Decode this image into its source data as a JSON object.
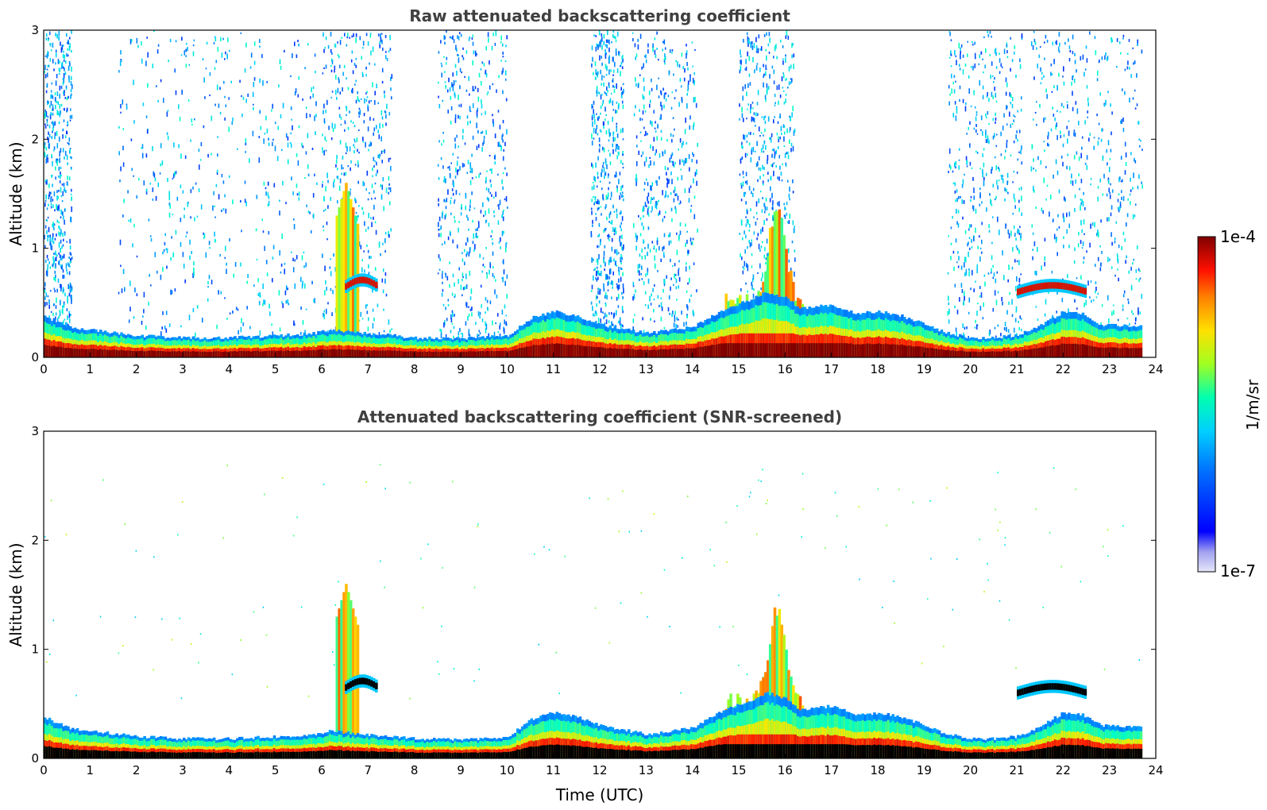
{
  "chart_data": [
    {
      "type": "heatmap",
      "title": "Raw attenuated backscattering coefficient",
      "xlabel": "",
      "ylabel": "Altitude (km)",
      "xlim": [
        0,
        24
      ],
      "ylim": [
        0,
        3
      ],
      "xticks": [
        0,
        1,
        2,
        3,
        4,
        5,
        6,
        7,
        8,
        9,
        10,
        11,
        12,
        13,
        14,
        15,
        16,
        17,
        18,
        19,
        20,
        21,
        22,
        23,
        24
      ],
      "yticks": [
        0,
        1,
        2,
        3
      ],
      "screened": false,
      "boundary_layer_top_km": [
        [
          0,
          0.38
        ],
        [
          0.5,
          0.28
        ],
        [
          1,
          0.25
        ],
        [
          2,
          0.2
        ],
        [
          3,
          0.18
        ],
        [
          4,
          0.18
        ],
        [
          5,
          0.2
        ],
        [
          5.8,
          0.22
        ],
        [
          6.2,
          0.25
        ],
        [
          7,
          0.22
        ],
        [
          8,
          0.18
        ],
        [
          9,
          0.17
        ],
        [
          10,
          0.2
        ],
        [
          10.5,
          0.36
        ],
        [
          11,
          0.42
        ],
        [
          11.5,
          0.38
        ],
        [
          12,
          0.3
        ],
        [
          13,
          0.22
        ],
        [
          14,
          0.28
        ],
        [
          14.7,
          0.45
        ],
        [
          15.2,
          0.52
        ],
        [
          15.6,
          0.6
        ],
        [
          16,
          0.55
        ],
        [
          16.3,
          0.45
        ],
        [
          17,
          0.48
        ],
        [
          17.5,
          0.4
        ],
        [
          18,
          0.42
        ],
        [
          18.5,
          0.38
        ],
        [
          19,
          0.3
        ],
        [
          19.5,
          0.22
        ],
        [
          20,
          0.18
        ],
        [
          20.5,
          0.18
        ],
        [
          21,
          0.2
        ],
        [
          21.5,
          0.3
        ],
        [
          22,
          0.42
        ],
        [
          22.4,
          0.4
        ],
        [
          22.8,
          0.3
        ],
        [
          23.7,
          0.28
        ]
      ],
      "features": [
        {
          "label": "plume",
          "t_start": 6.3,
          "t_end": 6.8,
          "top_km": 1.6
        },
        {
          "label": "elevated layer",
          "t_start": 6.5,
          "t_end": 7.2,
          "alt_km": 0.65
        },
        {
          "label": "convective plume",
          "t_start": 14.7,
          "t_end": 16.4,
          "top_km": 1.35
        },
        {
          "label": "elevated layer",
          "t_start": 21.0,
          "t_end": 22.5,
          "alt_km": 0.6
        }
      ]
    },
    {
      "type": "heatmap",
      "title": "Attenuated backscattering coefficient (SNR-screened)",
      "xlabel": "Time (UTC)",
      "ylabel": "Altitude (km)",
      "xlim": [
        0,
        24
      ],
      "ylim": [
        0,
        3
      ],
      "xticks": [
        0,
        1,
        2,
        3,
        4,
        5,
        6,
        7,
        8,
        9,
        10,
        11,
        12,
        13,
        14,
        15,
        16,
        17,
        18,
        19,
        20,
        21,
        22,
        23,
        24
      ],
      "yticks": [
        0,
        1,
        2,
        3
      ],
      "screened": true
    }
  ],
  "colorbar": {
    "label": "1/m/sr",
    "max_label": "1e-4",
    "min_label": "1e-7",
    "colormap": "jet",
    "colors": [
      "#e6e6fa",
      "#0000ff",
      "#00bfff",
      "#00ffbf",
      "#bfff00",
      "#ffbf00",
      "#ff2000",
      "#800000"
    ]
  }
}
